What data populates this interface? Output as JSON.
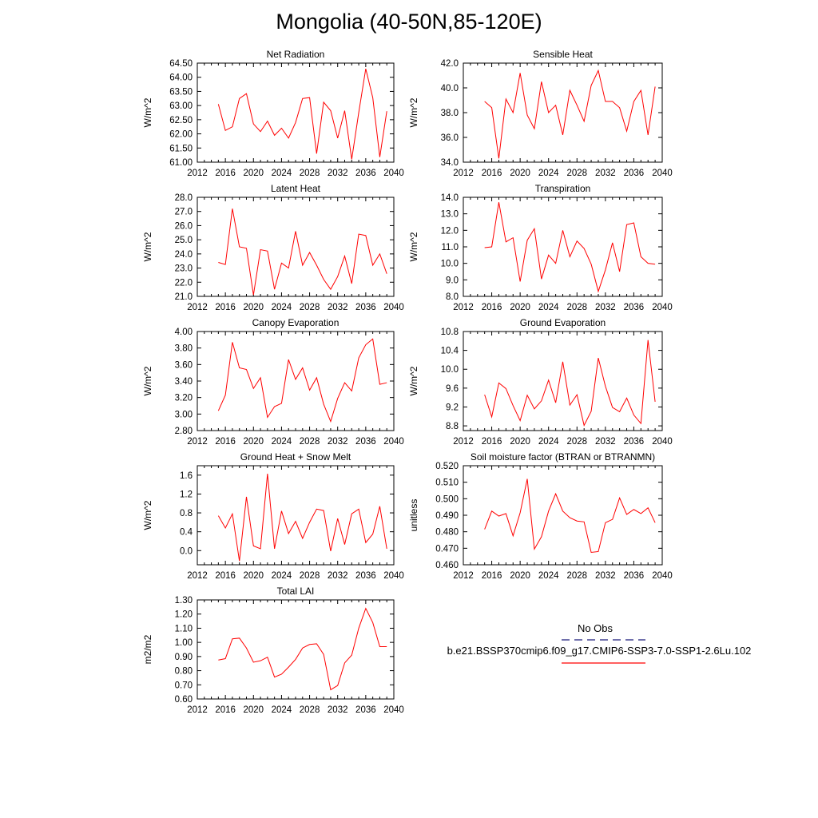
{
  "title": "Mongolia (40-50N,85-120E)",
  "legend": {
    "obs_label": "No Obs",
    "obs_color": "#1a1a7a",
    "model_label": "b.e21.BSSP370cmip6.f09_g17.CMIP6-SSP3-7.0-SSP1-2.6Lu.102",
    "model_color": "#ff0000"
  },
  "chart_data": [
    {
      "type": "line",
      "title": "Net Radiation",
      "ylabel": "W/m^2",
      "xlim": [
        2012,
        2040
      ],
      "ylim": [
        61.0,
        64.5
      ],
      "xticks": [
        2012,
        2016,
        2020,
        2024,
        2028,
        2032,
        2036,
        2040
      ],
      "yticks": [
        "61.00",
        "61.50",
        "62.00",
        "62.50",
        "63.00",
        "63.50",
        "64.00",
        "64.50"
      ],
      "x": [
        2015,
        2016,
        2017,
        2018,
        2019,
        2020,
        2021,
        2022,
        2023,
        2024,
        2025,
        2026,
        2027,
        2028,
        2029,
        2030,
        2031,
        2032,
        2033,
        2034,
        2035,
        2036,
        2037,
        2038,
        2039
      ],
      "series": [
        {
          "values": [
            63.05,
            62.12,
            62.25,
            63.25,
            63.42,
            62.35,
            62.08,
            62.45,
            61.95,
            62.2,
            61.85,
            62.4,
            63.25,
            63.28,
            61.3,
            63.12,
            62.82,
            61.85,
            62.82,
            61.1,
            62.75,
            64.3,
            63.28,
            61.18,
            62.8
          ]
        }
      ]
    },
    {
      "type": "line",
      "title": "Sensible Heat",
      "ylabel": "W/m^2",
      "xlim": [
        2012,
        2040
      ],
      "ylim": [
        34.0,
        42.0
      ],
      "xticks": [
        2012,
        2016,
        2020,
        2024,
        2028,
        2032,
        2036,
        2040
      ],
      "yticks": [
        "34.0",
        "36.0",
        "38.0",
        "40.0",
        "42.0"
      ],
      "x": [
        2015,
        2016,
        2017,
        2018,
        2019,
        2020,
        2021,
        2022,
        2023,
        2024,
        2025,
        2026,
        2027,
        2028,
        2029,
        2030,
        2031,
        2032,
        2033,
        2034,
        2035,
        2036,
        2037,
        2038,
        2039
      ],
      "series": [
        {
          "values": [
            38.9,
            38.4,
            34.3,
            39.1,
            38.0,
            41.2,
            37.8,
            36.7,
            40.5,
            38.0,
            38.6,
            36.2,
            39.8,
            38.6,
            37.3,
            40.2,
            41.4,
            38.9,
            38.9,
            38.4,
            36.5,
            38.9,
            39.8,
            36.2,
            40.1
          ]
        }
      ]
    },
    {
      "type": "line",
      "title": "Latent Heat",
      "ylabel": "W/m^2",
      "xlim": [
        2012,
        2040
      ],
      "ylim": [
        21.0,
        28.0
      ],
      "xticks": [
        2012,
        2016,
        2020,
        2024,
        2028,
        2032,
        2036,
        2040
      ],
      "yticks": [
        "21.0",
        "22.0",
        "23.0",
        "24.0",
        "25.0",
        "26.0",
        "27.0",
        "28.0"
      ],
      "x": [
        2015,
        2016,
        2017,
        2018,
        2019,
        2020,
        2021,
        2022,
        2023,
        2024,
        2025,
        2026,
        2027,
        2028,
        2029,
        2030,
        2031,
        2032,
        2033,
        2034,
        2035,
        2036,
        2037,
        2038,
        2039
      ],
      "series": [
        {
          "values": [
            23.4,
            23.25,
            27.2,
            24.5,
            24.4,
            21.1,
            24.3,
            24.2,
            21.5,
            23.35,
            23.0,
            25.6,
            23.2,
            24.1,
            23.2,
            22.2,
            21.5,
            22.4,
            23.85,
            21.9,
            25.4,
            25.3,
            23.2,
            24.0,
            22.6
          ]
        }
      ]
    },
    {
      "type": "line",
      "title": "Transpiration",
      "ylabel": "W/m^2",
      "xlim": [
        2012,
        2040
      ],
      "ylim": [
        8.0,
        14.0
      ],
      "xticks": [
        2012,
        2016,
        2020,
        2024,
        2028,
        2032,
        2036,
        2040
      ],
      "yticks": [
        "8.0",
        "9.0",
        "10.0",
        "11.0",
        "12.0",
        "13.0",
        "14.0"
      ],
      "x": [
        2015,
        2016,
        2017,
        2018,
        2019,
        2020,
        2021,
        2022,
        2023,
        2024,
        2025,
        2026,
        2027,
        2028,
        2029,
        2030,
        2031,
        2032,
        2033,
        2034,
        2035,
        2036,
        2037,
        2038,
        2039
      ],
      "series": [
        {
          "values": [
            10.95,
            11.0,
            13.7,
            11.3,
            11.55,
            8.9,
            11.4,
            12.1,
            9.05,
            10.5,
            10.0,
            12.0,
            10.4,
            11.35,
            10.9,
            9.95,
            8.3,
            9.6,
            11.25,
            9.5,
            12.35,
            12.45,
            10.4,
            10.0,
            9.95
          ]
        }
      ]
    },
    {
      "type": "line",
      "title": "Canopy Evaporation",
      "ylabel": "W/m^2",
      "xlim": [
        2012,
        2040
      ],
      "ylim": [
        2.8,
        4.0
      ],
      "xticks": [
        2012,
        2016,
        2020,
        2024,
        2028,
        2032,
        2036,
        2040
      ],
      "yticks": [
        "2.80",
        "3.00",
        "3.20",
        "3.40",
        "3.60",
        "3.80",
        "4.00"
      ],
      "x": [
        2015,
        2016,
        2017,
        2018,
        2019,
        2020,
        2021,
        2022,
        2023,
        2024,
        2025,
        2026,
        2027,
        2028,
        2029,
        2030,
        2031,
        2032,
        2033,
        2034,
        2035,
        2036,
        2037,
        2038,
        2039
      ],
      "series": [
        {
          "values": [
            3.04,
            3.23,
            3.87,
            3.56,
            3.54,
            3.31,
            3.44,
            2.96,
            3.09,
            3.13,
            3.66,
            3.42,
            3.56,
            3.29,
            3.44,
            3.12,
            2.91,
            3.19,
            3.38,
            3.28,
            3.68,
            3.84,
            3.91,
            3.36,
            3.38
          ]
        }
      ]
    },
    {
      "type": "line",
      "title": "Ground Evaporation",
      "ylabel": "W/m^2",
      "xlim": [
        2012,
        2040
      ],
      "ylim": [
        8.7,
        10.8
      ],
      "xticks": [
        2012,
        2016,
        2020,
        2024,
        2028,
        2032,
        2036,
        2040
      ],
      "yticks": [
        "8.8",
        "9.2",
        "9.6",
        "10.0",
        "10.4",
        "10.8"
      ],
      "x": [
        2015,
        2016,
        2017,
        2018,
        2019,
        2020,
        2021,
        2022,
        2023,
        2024,
        2025,
        2026,
        2027,
        2028,
        2029,
        2030,
        2031,
        2032,
        2033,
        2034,
        2035,
        2036,
        2037,
        2038,
        2039
      ],
      "series": [
        {
          "values": [
            9.46,
            8.99,
            9.71,
            9.59,
            9.23,
            8.91,
            9.45,
            9.16,
            9.33,
            9.77,
            9.29,
            10.16,
            9.24,
            9.46,
            8.81,
            9.11,
            10.24,
            9.64,
            9.19,
            9.1,
            9.39,
            9.03,
            8.85,
            10.62,
            9.31
          ]
        }
      ]
    },
    {
      "type": "line",
      "title": "Ground Heat + Snow Melt",
      "ylabel": "W/m^2",
      "xlim": [
        2012,
        2040
      ],
      "ylim": [
        -0.3,
        1.8
      ],
      "xticks": [
        2012,
        2016,
        2020,
        2024,
        2028,
        2032,
        2036,
        2040
      ],
      "yticks": [
        "0.0",
        "0.4",
        "0.8",
        "1.2",
        "1.6"
      ],
      "x": [
        2015,
        2016,
        2017,
        2018,
        2019,
        2020,
        2021,
        2022,
        2023,
        2024,
        2025,
        2026,
        2027,
        2028,
        2029,
        2030,
        2031,
        2032,
        2033,
        2034,
        2035,
        2036,
        2037,
        2038,
        2039
      ],
      "series": [
        {
          "values": [
            0.74,
            0.48,
            0.78,
            -0.22,
            1.14,
            0.1,
            0.04,
            1.63,
            0.04,
            0.84,
            0.36,
            0.62,
            0.26,
            0.6,
            0.88,
            0.85,
            -0.01,
            0.68,
            0.13,
            0.78,
            0.88,
            0.17,
            0.35,
            0.94,
            0.04
          ]
        }
      ]
    },
    {
      "type": "line",
      "title": "Soil moisture factor (BTRAN or BTRANMN)",
      "ylabel": "unitless",
      "xlim": [
        2012,
        2040
      ],
      "ylim": [
        0.46,
        0.52
      ],
      "xticks": [
        2012,
        2016,
        2020,
        2024,
        2028,
        2032,
        2036,
        2040
      ],
      "yticks": [
        "0.460",
        "0.470",
        "0.480",
        "0.490",
        "0.500",
        "0.510",
        "0.520"
      ],
      "x": [
        2015,
        2016,
        2017,
        2018,
        2019,
        2020,
        2021,
        2022,
        2023,
        2024,
        2025,
        2026,
        2027,
        2028,
        2029,
        2030,
        2031,
        2032,
        2033,
        2034,
        2035,
        2036,
        2037,
        2038,
        2039
      ],
      "series": [
        {
          "values": [
            0.4815,
            0.4925,
            0.4895,
            0.491,
            0.4775,
            0.4915,
            0.512,
            0.4695,
            0.477,
            0.4925,
            0.503,
            0.4925,
            0.4885,
            0.4865,
            0.486,
            0.4675,
            0.468,
            0.4855,
            0.4875,
            0.5005,
            0.4905,
            0.4935,
            0.491,
            0.4945,
            0.4855
          ]
        }
      ]
    },
    {
      "type": "line",
      "title": "Total LAI",
      "ylabel": "m2/m2",
      "xlim": [
        2012,
        2040
      ],
      "ylim": [
        0.6,
        1.3
      ],
      "xticks": [
        2012,
        2016,
        2020,
        2024,
        2028,
        2032,
        2036,
        2040
      ],
      "yticks": [
        "0.60",
        "0.70",
        "0.80",
        "0.90",
        "1.00",
        "1.10",
        "1.20",
        "1.30"
      ],
      "x": [
        2015,
        2016,
        2017,
        2018,
        2019,
        2020,
        2021,
        2022,
        2023,
        2024,
        2025,
        2026,
        2027,
        2028,
        2029,
        2030,
        2031,
        2032,
        2033,
        2034,
        2035,
        2036,
        2037,
        2038,
        2039
      ],
      "series": [
        {
          "values": [
            0.875,
            0.885,
            1.025,
            1.03,
            0.96,
            0.86,
            0.87,
            0.895,
            0.755,
            0.775,
            0.825,
            0.88,
            0.96,
            0.985,
            0.99,
            0.915,
            0.665,
            0.695,
            0.855,
            0.91,
            1.1,
            1.24,
            1.14,
            0.97,
            0.97
          ]
        }
      ]
    }
  ]
}
